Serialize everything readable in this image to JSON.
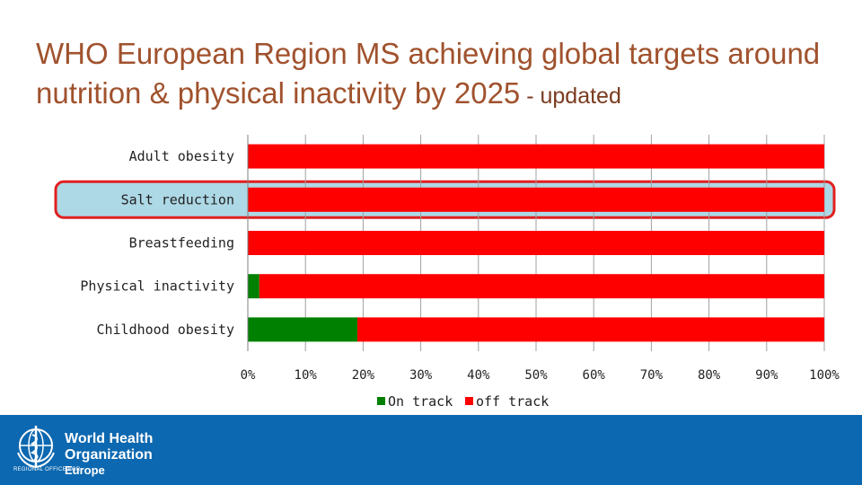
{
  "header": {
    "title_main": "WHO European Region MS achieving global targets around nutrition & physical inactivity by 2025",
    "title_suffix": " - updated"
  },
  "chart_data": {
    "type": "bar",
    "orientation": "horizontal",
    "stacked": true,
    "categories": [
      "Adult obesity",
      "Salt reduction",
      "Breastfeeding",
      "Physical inactivity",
      "Childhood obesity"
    ],
    "series": [
      {
        "name": "On track",
        "color": "#008000",
        "values": [
          0,
          0,
          0,
          2,
          19
        ]
      },
      {
        "name": "off track",
        "color": "#ff0000",
        "values": [
          100,
          100,
          100,
          98,
          81
        ]
      }
    ],
    "xlim": [
      0,
      100
    ],
    "x_ticks": [
      "0%",
      "10%",
      "20%",
      "30%",
      "40%",
      "50%",
      "60%",
      "70%",
      "80%",
      "90%",
      "100%"
    ],
    "highlighted_category": "Salt reduction",
    "highlight_color": "#add8e6",
    "highlight_border": "#e02020",
    "grid": true,
    "legend_position": "bottom"
  },
  "footer": {
    "org_line1": "World Health",
    "org_line2": "Organization",
    "office": "REGIONAL OFFICE FOR",
    "region": "Europe",
    "emblem": "who-emblem-icon",
    "background": "#0c68b0"
  }
}
